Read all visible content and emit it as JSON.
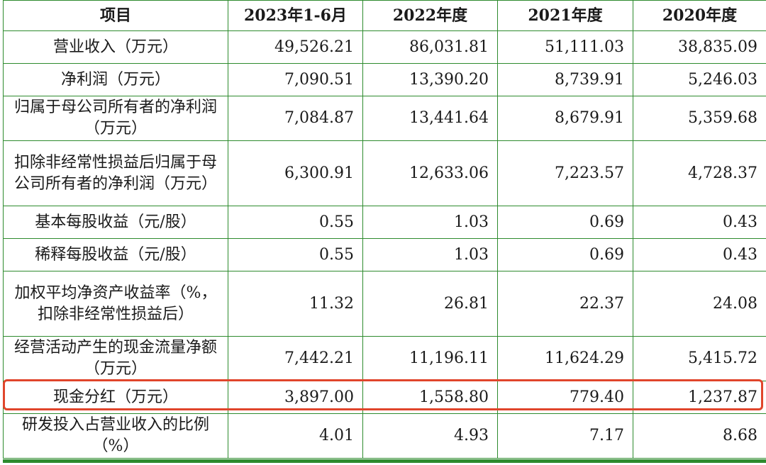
{
  "table": {
    "headers": [
      "项目",
      "2023年1-6月",
      "2022年度",
      "2021年度",
      "2020年度"
    ],
    "rows": [
      {
        "label": "营业收入（万元）",
        "values": [
          "49,526.21",
          "86,031.81",
          "51,111.03",
          "38,835.09"
        ]
      },
      {
        "label": "净利润（万元）",
        "values": [
          "7,090.51",
          "13,390.20",
          "8,739.91",
          "5,246.03"
        ]
      },
      {
        "label": "归属于母公司所有者的净利润（万元）",
        "values": [
          "7,084.87",
          "13,441.64",
          "8,679.91",
          "5,359.68"
        ]
      },
      {
        "label": "扣除非经常性损益后归属于母公司所有者的净利润（万元）",
        "values": [
          "6,300.91",
          "12,633.06",
          "7,223.57",
          "4,728.37"
        ]
      },
      {
        "label": "基本每股收益（元/股）",
        "values": [
          "0.55",
          "1.03",
          "0.69",
          "0.43"
        ]
      },
      {
        "label": "稀释每股收益（元/股）",
        "values": [
          "0.55",
          "1.03",
          "0.69",
          "0.43"
        ]
      },
      {
        "label": "加权平均净资产收益率（%，扣除非经常性损益后）",
        "values": [
          "11.32",
          "26.81",
          "22.37",
          "24.08"
        ]
      },
      {
        "label": "经营活动产生的现金流量净额（万元）",
        "values": [
          "7,442.21",
          "11,196.11",
          "11,624.29",
          "5,415.72"
        ]
      },
      {
        "label": "现金分红（万元）",
        "values": [
          "3,897.00",
          "1,558.80",
          "779.40",
          "1,237.87"
        ]
      },
      {
        "label": "研发投入占营业收入的比例（%）",
        "values": [
          "4.01",
          "4.93",
          "7.17",
          "8.68"
        ]
      }
    ]
  },
  "colors": {
    "grid": "#2e8b2e",
    "highlight": "#e0452b"
  }
}
